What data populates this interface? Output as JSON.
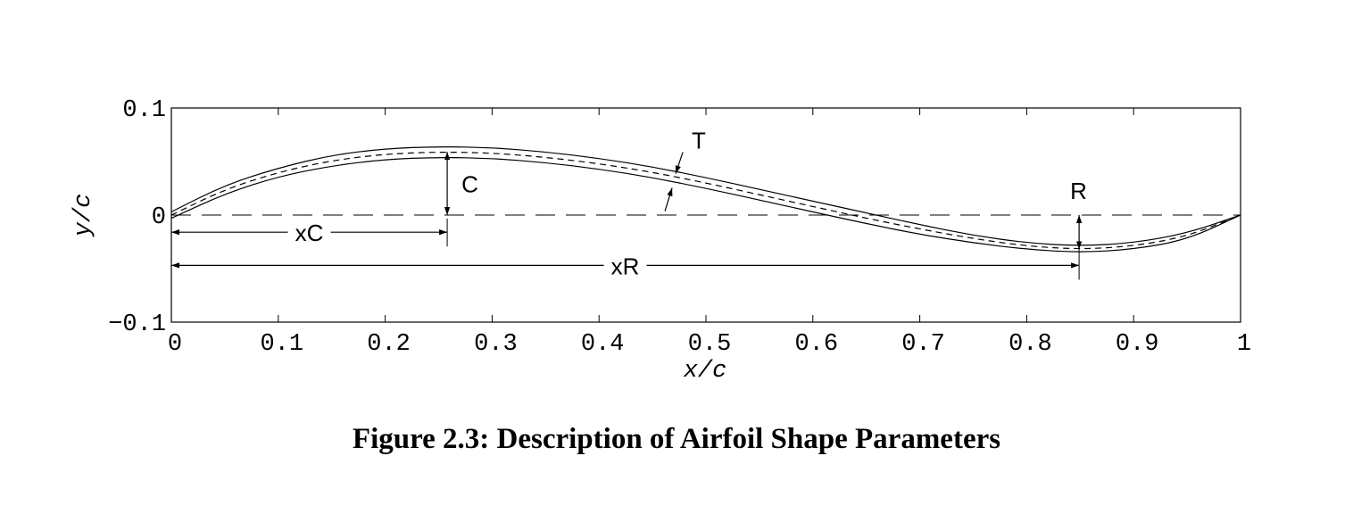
{
  "caption": "Figure 2.3:  Description of Airfoil Shape Parameters",
  "chart_data": {
    "type": "line",
    "xlabel": "x/c",
    "ylabel": "y/c",
    "xlim": [
      0,
      1
    ],
    "ylim": [
      -0.1,
      0.1
    ],
    "x_ticks": [
      0,
      0.1,
      0.2,
      0.3,
      0.4,
      0.5,
      0.6,
      0.7,
      0.8,
      0.9,
      1
    ],
    "x_tick_labels": [
      "0",
      "0.1",
      "0.2",
      "0.3",
      "0.4",
      "0.5",
      "0.6",
      "0.7",
      "0.8",
      "0.9",
      "1"
    ],
    "y_ticks": [
      -0.1,
      0,
      0.1
    ],
    "y_tick_labels": [
      "−0.1",
      "0",
      "0.1"
    ],
    "grid": false,
    "x": [
      0,
      0.05,
      0.1,
      0.15,
      0.2,
      0.25,
      0.3,
      0.35,
      0.4,
      0.45,
      0.5,
      0.55,
      0.6,
      0.65,
      0.7,
      0.75,
      0.8,
      0.85,
      0.9,
      0.95,
      1.0
    ],
    "series": [
      {
        "values": [
          0.003,
          0.028,
          0.044,
          0.056,
          0.062,
          0.064,
          0.063,
          0.059,
          0.053,
          0.045,
          0.035,
          0.024,
          0.013,
          0.002,
          -0.009,
          -0.019,
          -0.026,
          -0.029,
          -0.026,
          -0.017,
          0.0
        ]
      },
      {
        "values": [
          0.0,
          0.024,
          0.04,
          0.051,
          0.057,
          0.059,
          0.058,
          0.054,
          0.048,
          0.04,
          0.03,
          0.019,
          0.008,
          -0.003,
          -0.013,
          -0.022,
          -0.029,
          -0.032,
          -0.029,
          -0.02,
          0.0
        ]
      },
      {
        "values": [
          -0.003,
          0.02,
          0.036,
          0.046,
          0.052,
          0.054,
          0.053,
          0.049,
          0.043,
          0.035,
          0.025,
          0.014,
          0.003,
          -0.008,
          -0.018,
          -0.026,
          -0.032,
          -0.035,
          -0.032,
          -0.023,
          0.0
        ]
      }
    ],
    "annotations": [
      {
        "label": "C",
        "x": 0.258,
        "y_from": 0,
        "y_to": 0.059
      },
      {
        "label": "xC",
        "y": -0.016,
        "x_from": 0,
        "x_to": 0.258
      },
      {
        "label": "xR",
        "y": -0.047,
        "x_from": 0,
        "x_to": 0.849
      },
      {
        "label": "R",
        "x": 0.849,
        "y_from": 0,
        "y_to": -0.032
      },
      {
        "label": "T",
        "x": 0.47,
        "y_from": 0.027,
        "y_to": 0.037
      }
    ]
  }
}
